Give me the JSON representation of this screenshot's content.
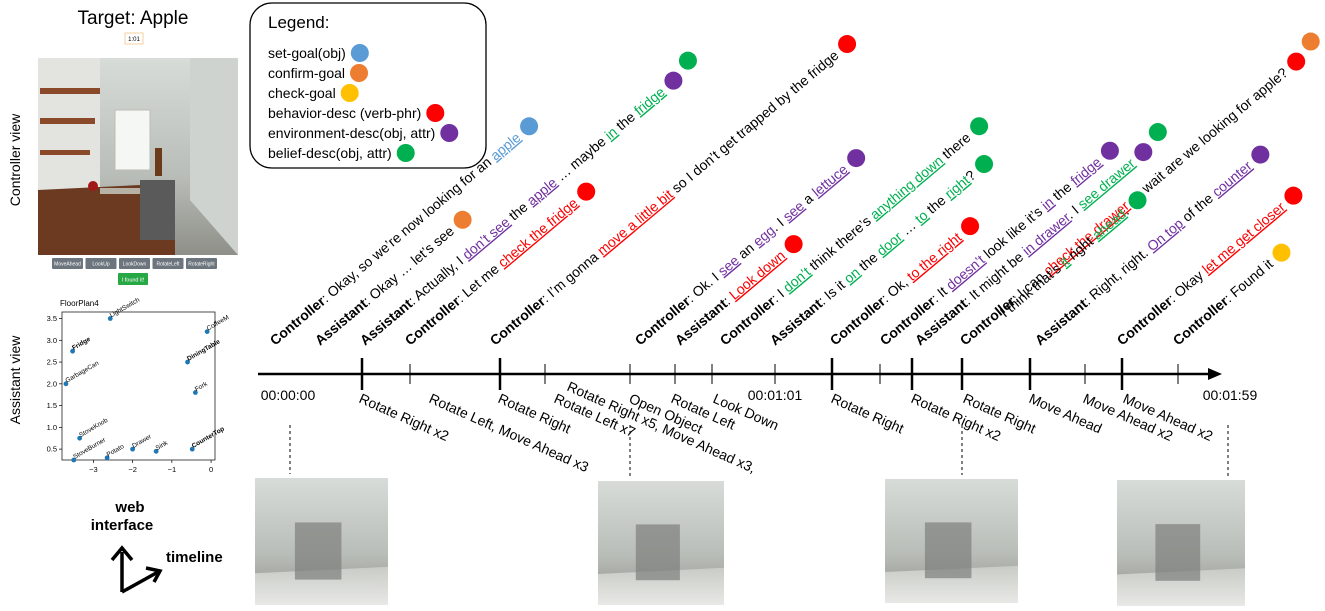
{
  "left_panel": {
    "target": "Target: Apple",
    "timer": "1:01",
    "controller_view_label": "Controller view",
    "assistant_view_label": "Assistant view",
    "buttons": [
      "MoveAhead",
      "LookUp",
      "LookDown",
      "RotateLeft",
      "RotateRight"
    ],
    "found_button": "I found it!",
    "web_interface_label": "web\ninterface",
    "timeline_label": "timeline"
  },
  "floorplan": {
    "title": "FloorPlan4",
    "xlim": [
      -3.8,
      0.1
    ],
    "ylim": [
      0.25,
      3.65
    ],
    "xticks": [
      {
        "value": -3,
        "label": "−3"
      },
      {
        "value": -2,
        "label": "−2"
      },
      {
        "value": -1,
        "label": "−1"
      },
      0
    ],
    "yticks": [
      0.5,
      {
        "value": 1,
        "label": "1.0"
      },
      1.5,
      {
        "value": 2,
        "label": "2.0"
      },
      2.5,
      {
        "value": 3,
        "label": "3.0"
      },
      3.5
    ],
    "color": "#1f77b4",
    "points": [
      {
        "label": "LightSwitch",
        "x": -2.57,
        "y": 3.5,
        "bold": false
      },
      {
        "label": "CoffeeM",
        "x": -0.1,
        "y": 3.2,
        "bold": false
      },
      {
        "label": "Fridge",
        "x": -3.53,
        "y": 2.75,
        "bold": true
      },
      {
        "label": "DiningTable",
        "x": -0.6,
        "y": 2.5,
        "bold": true
      },
      {
        "label": "GarbageCan",
        "x": -3.7,
        "y": 2.0,
        "bold": false
      },
      {
        "label": "Fork",
        "x": -0.4,
        "y": 1.8,
        "bold": false
      },
      {
        "label": "StoveKnob",
        "x": -3.35,
        "y": 0.75,
        "bold": false
      },
      {
        "label": "Potato",
        "x": -2.65,
        "y": 0.3,
        "bold": false
      },
      {
        "label": "Drawer",
        "x": -2.0,
        "y": 0.5,
        "bold": false
      },
      {
        "label": "Sink",
        "x": -1.4,
        "y": 0.45,
        "bold": false
      },
      {
        "label": "StoveBurner",
        "x": -3.5,
        "y": 0.25,
        "bold": false
      },
      {
        "label": "CounterTop",
        "x": -0.48,
        "y": 0.5,
        "bold": true
      }
    ]
  },
  "legend": {
    "title": "Legend:",
    "items": [
      {
        "label": "set-goal(obj)",
        "color": "#5b9bd5"
      },
      {
        "label": "confirm-goal",
        "color": "#ed7d31"
      },
      {
        "label": "check-goal",
        "color": "#ffc000"
      },
      {
        "label": "behavior-desc (verb-phr)",
        "color": "#ff0000"
      },
      {
        "label": "environment-desc(obj, attr)",
        "color": "#7030a0"
      },
      {
        "label": "belief-desc(obj, attr)",
        "color": "#00b050"
      }
    ]
  },
  "utterances": [
    {
      "speaker": "Controller",
      "segments": [
        {
          "text": ": Okay, so we’re now looking for an "
        },
        {
          "text": "apple",
          "color": "#5b9bd5"
        }
      ],
      "dots": [
        "#5b9bd5"
      ]
    },
    {
      "speaker": "Assistant",
      "segments": [
        {
          "text": ": Okay … let’s see"
        }
      ],
      "dots": [
        "#ed7d31"
      ]
    },
    {
      "speaker": "Assistant",
      "segments": [
        {
          "text": ": Actually, I "
        },
        {
          "text": "don’t see",
          "color": "#7030a0"
        },
        {
          "text": " the "
        },
        {
          "text": "apple",
          "color": "#7030a0"
        },
        {
          "text": " … maybe "
        },
        {
          "text": "in",
          "color": "#00b050"
        },
        {
          "text": " the "
        },
        {
          "text": "fridge",
          "color": "#00b050"
        }
      ],
      "dots": [
        "#7030a0",
        "#00b050"
      ]
    },
    {
      "speaker": "Controller",
      "segments": [
        {
          "text": ": Let me "
        },
        {
          "text": "check the fridge",
          "color": "#ff0000"
        }
      ],
      "dots": [
        "#ff0000"
      ]
    },
    {
      "speaker": "Controller",
      "segments": [
        {
          "text": ": I’m gonna "
        },
        {
          "text": "move a little bit",
          "color": "#ff0000"
        },
        {
          "text": " so I don’t get trapped by the fridge"
        }
      ],
      "dots": [
        "#ff0000"
      ]
    },
    {
      "speaker": "Controller",
      "segments": [
        {
          "text": ": Ok. I "
        },
        {
          "text": "see",
          "color": "#7030a0"
        },
        {
          "text": " an "
        },
        {
          "text": "egg",
          "color": "#7030a0"
        },
        {
          "text": ". I "
        },
        {
          "text": "see",
          "color": "#7030a0"
        },
        {
          "text": " a "
        },
        {
          "text": "lettuce",
          "color": "#7030a0"
        }
      ],
      "dots": [
        "#7030a0"
      ]
    },
    {
      "speaker": "Assistant",
      "segments": [
        {
          "text": ": "
        },
        {
          "text": "Look down",
          "color": "#ff0000"
        }
      ],
      "dots": [
        "#ff0000"
      ]
    },
    {
      "speaker": "Controller",
      "segments": [
        {
          "text": ": I "
        },
        {
          "text": "don’t",
          "color": "#00b050"
        },
        {
          "text": " think there’s "
        },
        {
          "text": "anything down",
          "color": "#00b050"
        },
        {
          "text": " there"
        }
      ],
      "dots": [
        "#00b050"
      ]
    },
    {
      "speaker": "Assistant",
      "segments": [
        {
          "text": ": Is it "
        },
        {
          "text": "on",
          "color": "#00b050"
        },
        {
          "text": " the "
        },
        {
          "text": "door",
          "color": "#00b050"
        },
        {
          "text": " … "
        },
        {
          "text": "to",
          "color": "#00b050"
        },
        {
          "text": " the "
        },
        {
          "text": "right",
          "color": "#00b050"
        },
        {
          "text": "?"
        }
      ],
      "dots": [
        "#00b050"
      ]
    },
    {
      "speaker": "Controller",
      "segments": [
        {
          "text": ":   Ok, "
        },
        {
          "text": "to the right",
          "color": "#ff0000"
        }
      ],
      "dots": [
        "#ff0000"
      ]
    },
    {
      "speaker": "Controller",
      "segments": [
        {
          "text": ": It "
        },
        {
          "text": "doesn’t",
          "color": "#7030a0"
        },
        {
          "text": " look like it’s "
        },
        {
          "text": "in",
          "color": "#7030a0"
        },
        {
          "text": " the "
        },
        {
          "text": "fridge",
          "color": "#7030a0"
        }
      ],
      "dots": [
        "#7030a0"
      ]
    },
    {
      "speaker": "Assistant",
      "segments": [
        {
          "text": ": It might be "
        },
        {
          "text": "in drawer",
          "color": "#7030a0"
        },
        {
          "text": ". I "
        },
        {
          "text": "see drawer",
          "color": "#00b050"
        }
      ],
      "dots": [
        "#7030a0",
        "#00b050"
      ]
    },
    {
      "speaker": "Controller",
      "segments": [
        {
          "text": ":  I can "
        },
        {
          "text": "check the drawer",
          "color": "#ff0000"
        },
        {
          "text": " … wait are we looking for apple?"
        }
      ],
      "dots": [
        "#ff0000",
        "#ed7d31"
      ]
    },
    {
      "speaker": null,
      "segments": [
        {
          "text": "I think that’s "
        },
        {
          "text": "it",
          "color": "#00b050"
        },
        {
          "text": " right "
        },
        {
          "text": "ahead",
          "color": "#00b050"
        },
        {
          "text": "."
        }
      ],
      "dots": [
        "#00b050"
      ]
    },
    {
      "speaker": "Assistant",
      "segments": [
        {
          "text": ": Right, right. "
        },
        {
          "text": "On top",
          "color": "#7030a0"
        },
        {
          "text": " of the "
        },
        {
          "text": "counter",
          "color": "#7030a0"
        }
      ],
      "dots": [
        "#7030a0"
      ]
    },
    {
      "speaker": "Controller",
      "segments": [
        {
          "text": ": Okay "
        },
        {
          "text": "let me get closer",
          "color": "#ff0000"
        }
      ],
      "dots": [
        "#ff0000"
      ]
    },
    {
      "speaker": "Controller",
      "segments": [
        {
          "text": ": Found it"
        }
      ],
      "dots": [
        "#ffc000"
      ]
    }
  ],
  "timestamps": [
    "00:00:00",
    "00:01:01",
    "00:01:59"
  ],
  "actions": [
    "Rotate Right x2",
    "Rotate Left, Move Ahead x3",
    "Rotate Right",
    "Rotate Left x7",
    "Rotate Right x5, Move Ahead x3,",
    "Open Object",
    "Rotate Left",
    "Look Down",
    "Rotate Right",
    "Rotate Right x2",
    "Rotate Right",
    "Move Ahead",
    "Move Ahead x2",
    "Move Ahead x2"
  ]
}
